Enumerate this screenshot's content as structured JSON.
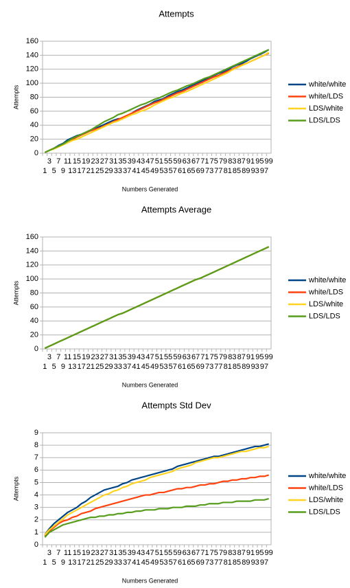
{
  "chart_data": [
    {
      "type": "line",
      "title": "Attempts",
      "x_label": "Numbers Generated",
      "y_label": "Attempts",
      "categories": [
        1,
        3,
        5,
        7,
        9,
        11,
        13,
        15,
        17,
        19,
        21,
        23,
        25,
        27,
        29,
        31,
        33,
        35,
        37,
        39,
        41,
        43,
        45,
        47,
        49,
        51,
        53,
        55,
        57,
        59,
        61,
        63,
        65,
        67,
        69,
        71,
        73,
        75,
        77,
        79,
        81,
        83,
        85,
        87,
        89,
        91,
        93,
        95,
        97,
        99
      ],
      "ylim": [
        0,
        160
      ],
      "yticks": [
        0,
        20,
        40,
        60,
        80,
        100,
        120,
        140,
        160
      ],
      "grid": true,
      "legend": "right",
      "series": [
        {
          "name": "white/white",
          "color": "#004586",
          "values": [
            1,
            4,
            7,
            11,
            14,
            19,
            22,
            25,
            27,
            30,
            33,
            35,
            38,
            41,
            44,
            47,
            49,
            50,
            53,
            57,
            61,
            64,
            67,
            70,
            74,
            76,
            78,
            82,
            85,
            88,
            90,
            93,
            96,
            99,
            102,
            105,
            108,
            111,
            114,
            116,
            119,
            123,
            126,
            128,
            131,
            135,
            138,
            141,
            144,
            148
          ]
        },
        {
          "name": "white/LDS",
          "color": "#ff420e",
          "values": [
            1,
            4,
            7,
            10,
            13,
            16,
            19,
            23,
            26,
            29,
            32,
            34,
            36,
            39,
            42,
            45,
            48,
            51,
            54,
            57,
            60,
            63,
            66,
            69,
            72,
            74,
            77,
            80,
            83,
            86,
            88,
            91,
            94,
            97,
            100,
            103,
            106,
            109,
            111,
            114,
            117,
            120,
            123,
            126,
            128,
            131,
            134,
            137,
            140,
            143
          ]
        },
        {
          "name": "LDS/white",
          "color": "#ffd320",
          "values": [
            1,
            4,
            6,
            9,
            12,
            15,
            18,
            20,
            23,
            26,
            29,
            32,
            35,
            38,
            41,
            44,
            46,
            49,
            52,
            55,
            57,
            60,
            62,
            65,
            69,
            72,
            75,
            78,
            80,
            83,
            86,
            88,
            91,
            94,
            97,
            100,
            103,
            106,
            109,
            112,
            115,
            119,
            122,
            125,
            128,
            131,
            134,
            137,
            140,
            144
          ]
        },
        {
          "name": "LDS/LDS",
          "color": "#579d1c",
          "values": [
            1,
            4,
            7,
            10,
            13,
            17,
            21,
            24,
            27,
            30,
            33,
            37,
            41,
            45,
            48,
            51,
            55,
            57,
            60,
            63,
            66,
            69,
            71,
            74,
            77,
            79,
            82,
            85,
            88,
            90,
            93,
            96,
            98,
            101,
            104,
            107,
            109,
            112,
            115,
            118,
            121,
            124,
            127,
            130,
            133,
            136,
            139,
            142,
            145,
            148
          ]
        }
      ]
    },
    {
      "type": "line",
      "title": "Attempts Average",
      "x_label": "Numbers Generated",
      "y_label": "Attempts",
      "categories": [
        1,
        3,
        5,
        7,
        9,
        11,
        13,
        15,
        17,
        19,
        21,
        23,
        25,
        27,
        29,
        31,
        33,
        35,
        37,
        39,
        41,
        43,
        45,
        47,
        49,
        51,
        53,
        55,
        57,
        59,
        61,
        63,
        65,
        67,
        69,
        71,
        73,
        75,
        77,
        79,
        81,
        83,
        85,
        87,
        89,
        91,
        93,
        95,
        97,
        99
      ],
      "ylim": [
        0,
        160
      ],
      "yticks": [
        0,
        20,
        40,
        60,
        80,
        100,
        120,
        140,
        160
      ],
      "grid": true,
      "legend": "right",
      "series": [
        {
          "name": "white/white",
          "color": "#004586",
          "values": [
            1,
            4,
            7,
            10,
            13,
            16,
            19,
            22,
            25,
            28,
            31,
            34,
            37,
            40,
            43,
            46,
            49,
            51,
            54,
            57,
            60,
            63,
            66,
            69,
            72,
            75,
            78,
            81,
            84,
            87,
            90,
            93,
            96,
            99,
            101,
            104,
            107,
            110,
            113,
            116,
            119,
            122,
            125,
            128,
            131,
            134,
            137,
            140,
            143,
            146
          ]
        },
        {
          "name": "white/LDS",
          "color": "#ff420e",
          "values": [
            1,
            4,
            7,
            10,
            13,
            16,
            19,
            22,
            25,
            28,
            31,
            34,
            37,
            40,
            43,
            46,
            49,
            51,
            54,
            57,
            60,
            63,
            66,
            69,
            72,
            75,
            78,
            81,
            84,
            87,
            90,
            93,
            96,
            99,
            101,
            104,
            107,
            110,
            113,
            116,
            119,
            122,
            125,
            128,
            131,
            134,
            137,
            140,
            143,
            146
          ]
        },
        {
          "name": "LDS/white",
          "color": "#ffd320",
          "values": [
            1,
            4,
            7,
            10,
            13,
            16,
            19,
            22,
            25,
            28,
            31,
            34,
            37,
            40,
            43,
            46,
            49,
            51,
            54,
            57,
            60,
            63,
            66,
            69,
            72,
            75,
            78,
            81,
            84,
            87,
            90,
            93,
            96,
            99,
            101,
            104,
            107,
            110,
            113,
            116,
            119,
            122,
            125,
            128,
            131,
            134,
            137,
            140,
            143,
            146
          ]
        },
        {
          "name": "LDS/LDS",
          "color": "#579d1c",
          "values": [
            1,
            4,
            7,
            10,
            13,
            16,
            19,
            22,
            25,
            28,
            31,
            34,
            37,
            40,
            43,
            46,
            49,
            51,
            54,
            57,
            60,
            63,
            66,
            69,
            72,
            75,
            78,
            81,
            84,
            87,
            90,
            93,
            96,
            99,
            101,
            104,
            107,
            110,
            113,
            116,
            119,
            122,
            125,
            128,
            131,
            134,
            137,
            140,
            143,
            146
          ]
        }
      ]
    },
    {
      "type": "line",
      "title": "Attempts Std Dev",
      "x_label": "Numbers Generated",
      "y_label": "Attempts",
      "categories": [
        1,
        3,
        5,
        7,
        9,
        11,
        13,
        15,
        17,
        19,
        21,
        23,
        25,
        27,
        29,
        31,
        33,
        35,
        37,
        39,
        41,
        43,
        45,
        47,
        49,
        51,
        53,
        55,
        57,
        59,
        61,
        63,
        65,
        67,
        69,
        71,
        73,
        75,
        77,
        79,
        81,
        83,
        85,
        87,
        89,
        91,
        93,
        95,
        97,
        99
      ],
      "ylim": [
        0,
        9
      ],
      "yticks": [
        0,
        1,
        2,
        3,
        4,
        5,
        6,
        7,
        8,
        9
      ],
      "grid": true,
      "legend": "right",
      "series": [
        {
          "name": "white/white",
          "color": "#004586",
          "values": [
            0.8,
            1.3,
            1.7,
            2.0,
            2.3,
            2.6,
            2.8,
            3.0,
            3.3,
            3.5,
            3.8,
            4.0,
            4.2,
            4.4,
            4.5,
            4.6,
            4.7,
            4.9,
            5.0,
            5.2,
            5.3,
            5.4,
            5.5,
            5.6,
            5.7,
            5.8,
            5.9,
            6.0,
            6.1,
            6.3,
            6.4,
            6.5,
            6.6,
            6.7,
            6.8,
            6.9,
            7.0,
            7.1,
            7.1,
            7.2,
            7.3,
            7.4,
            7.5,
            7.6,
            7.7,
            7.8,
            7.9,
            7.9,
            8.0,
            8.1
          ]
        },
        {
          "name": "white/LDS",
          "color": "#ff420e",
          "values": [
            0.7,
            1.1,
            1.4,
            1.7,
            1.9,
            2.0,
            2.2,
            2.3,
            2.5,
            2.6,
            2.7,
            2.9,
            3.0,
            3.1,
            3.2,
            3.3,
            3.4,
            3.5,
            3.6,
            3.7,
            3.8,
            3.9,
            4.0,
            4.0,
            4.1,
            4.2,
            4.2,
            4.3,
            4.4,
            4.5,
            4.5,
            4.6,
            4.6,
            4.7,
            4.8,
            4.8,
            4.9,
            4.9,
            5.0,
            5.1,
            5.1,
            5.2,
            5.2,
            5.3,
            5.3,
            5.4,
            5.4,
            5.5,
            5.5,
            5.6
          ]
        },
        {
          "name": "LDS/white",
          "color": "#ffd320",
          "values": [
            0.8,
            1.2,
            1.5,
            1.8,
            2.1,
            2.4,
            2.6,
            2.8,
            3.0,
            3.2,
            3.4,
            3.6,
            3.8,
            4.0,
            4.1,
            4.3,
            4.4,
            4.6,
            4.7,
            4.9,
            5.0,
            5.1,
            5.2,
            5.4,
            5.5,
            5.6,
            5.7,
            5.8,
            5.9,
            6.1,
            6.2,
            6.3,
            6.4,
            6.6,
            6.7,
            6.8,
            6.9,
            7.0,
            7.0,
            7.1,
            7.2,
            7.3,
            7.4,
            7.5,
            7.5,
            7.6,
            7.7,
            7.8,
            7.8,
            7.9
          ]
        },
        {
          "name": "LDS/LDS",
          "color": "#579d1c",
          "values": [
            0.6,
            1.0,
            1.2,
            1.4,
            1.6,
            1.7,
            1.8,
            1.9,
            2.0,
            2.1,
            2.2,
            2.2,
            2.3,
            2.3,
            2.4,
            2.4,
            2.5,
            2.5,
            2.6,
            2.6,
            2.7,
            2.7,
            2.8,
            2.8,
            2.8,
            2.9,
            2.9,
            2.9,
            3.0,
            3.0,
            3.0,
            3.1,
            3.1,
            3.1,
            3.2,
            3.2,
            3.3,
            3.3,
            3.3,
            3.4,
            3.4,
            3.4,
            3.5,
            3.5,
            3.5,
            3.5,
            3.6,
            3.6,
            3.6,
            3.7
          ]
        }
      ]
    }
  ]
}
